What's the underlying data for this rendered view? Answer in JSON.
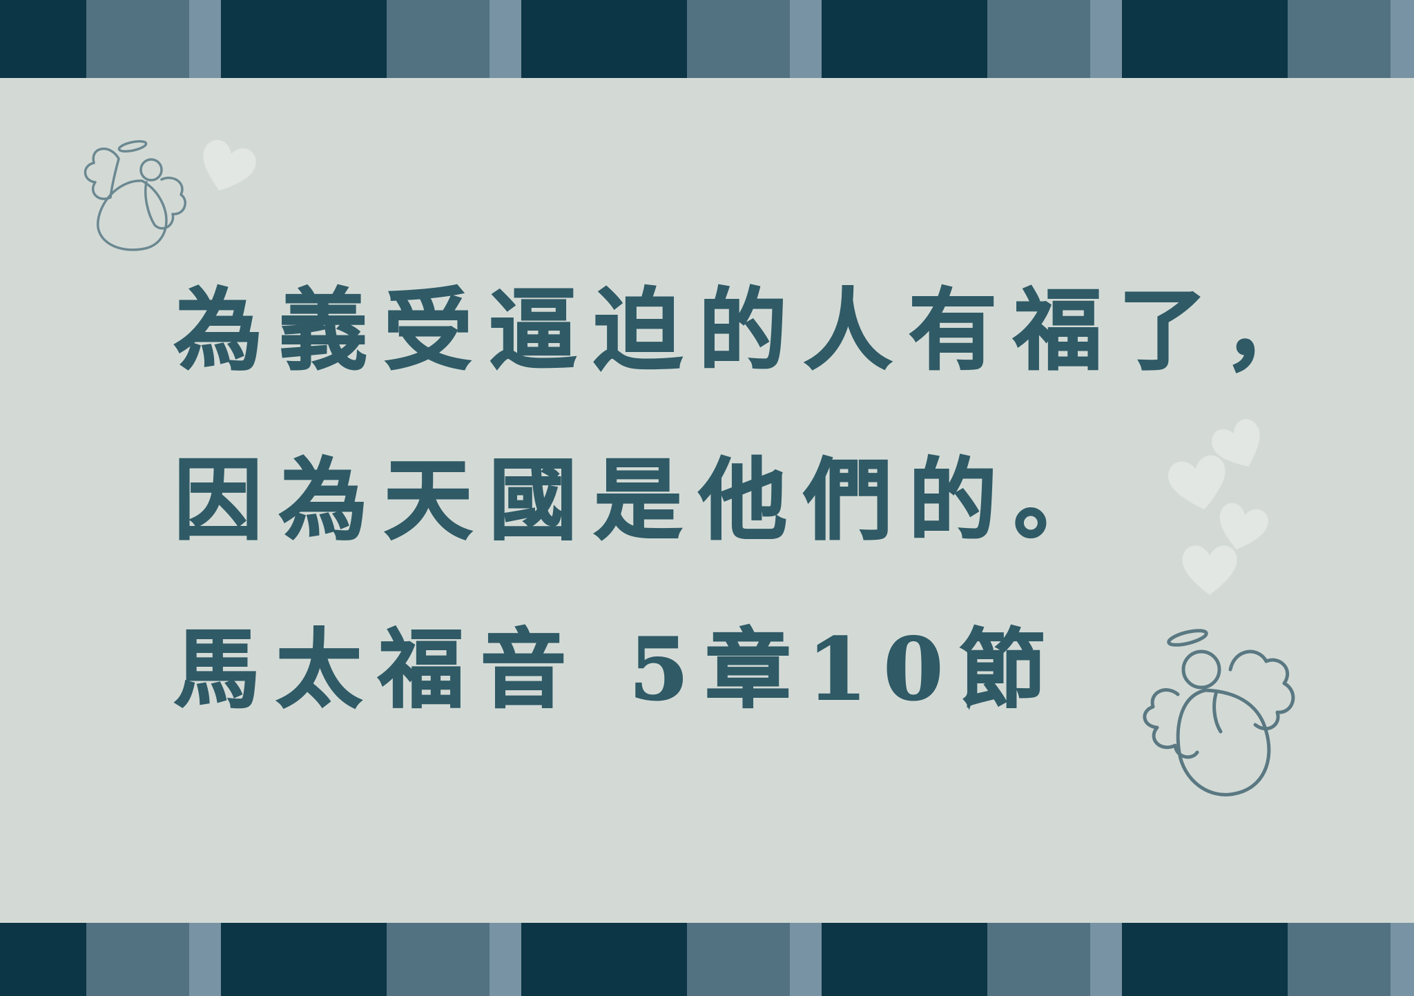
{
  "verse": {
    "line1": "為義受逼迫的人有福了，",
    "line2": "因為天國是他們的。",
    "reference": "馬太福音 5章10節"
  },
  "colors": {
    "background": "#d3dad5",
    "text": "#2f5a66",
    "stripe_dark": "#0c3545",
    "stripe_mid": "#527282",
    "stripe_light": "#7893a3",
    "angel_outline": "#5e7d86",
    "heart": "#e6ebe7"
  },
  "decorations": {
    "angel_top_left": "angel-icon",
    "angel_bottom_right": "angel-icon",
    "hearts": "heart-icon"
  }
}
